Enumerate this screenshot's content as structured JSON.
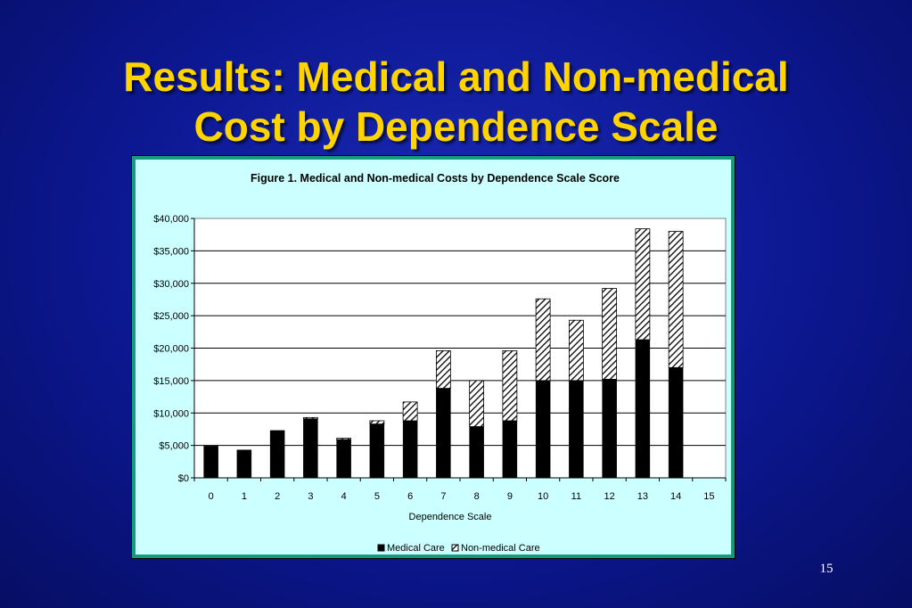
{
  "slide": {
    "title_line1": "Results: Medical and Non-medical",
    "title_line2": "Cost by Dependence Scale",
    "page_number": "15"
  },
  "colors": {
    "background": "#0c1790",
    "title": "#ffd400",
    "chart_background": "#ccffff",
    "chart_border": "#139a7f",
    "medical": "#000000",
    "non_medical_hatch": "#000000"
  },
  "chart_data": {
    "type": "bar",
    "stacked": true,
    "title": "Figure 1. Medical and Non-medical Costs by Dependence Scale Score",
    "xlabel": "Dependence Scale",
    "ylabel": "",
    "categories": [
      "0",
      "1",
      "2",
      "3",
      "4",
      "5",
      "6",
      "7",
      "8",
      "9",
      "10",
      "11",
      "12",
      "13",
      "14",
      "15"
    ],
    "ylim": [
      0,
      40000
    ],
    "yticks": [
      "$0",
      "$5,000",
      "$10,000",
      "$15,000",
      "$20,000",
      "$25,000",
      "$30,000",
      "$35,000",
      "$40,000"
    ],
    "grid": true,
    "legend_position": "bottom",
    "series": [
      {
        "name": "Medical Care",
        "fill": "solid",
        "values": [
          4900,
          4300,
          7300,
          9100,
          5900,
          8300,
          8800,
          13800,
          7900,
          8800,
          15000,
          15000,
          15200,
          21300,
          17000,
          0
        ]
      },
      {
        "name": "Non-medical Care",
        "fill": "hatched",
        "values": [
          0,
          0,
          0,
          200,
          200,
          500,
          2900,
          5800,
          7100,
          10800,
          12600,
          9300,
          14000,
          17100,
          21000,
          0
        ]
      }
    ]
  }
}
